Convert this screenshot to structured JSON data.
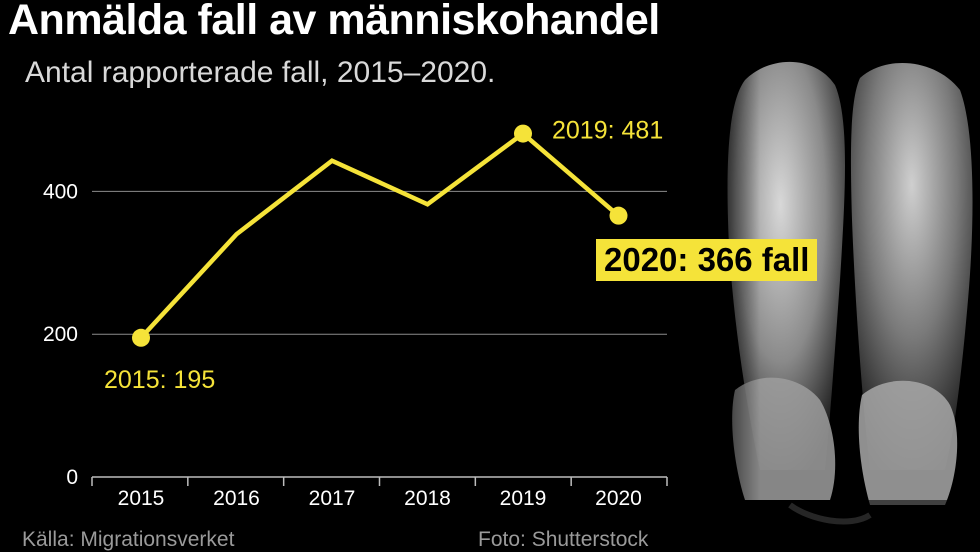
{
  "header": {
    "title": "Anmälda fall av människohandel",
    "subtitle": "Antal rapporterade fall, 2015–2020."
  },
  "chart_data": {
    "type": "line",
    "x": [
      "2015",
      "2016",
      "2017",
      "2018",
      "2019",
      "2020"
    ],
    "values": [
      195,
      340,
      443,
      382,
      481,
      366
    ],
    "ylim": [
      0,
      500
    ],
    "yticks": [
      0,
      200,
      400
    ],
    "grid": true,
    "line_color": "#f5e339",
    "annotations": [
      {
        "label": "2015: 195",
        "index": 0
      },
      {
        "label": "2019: 481",
        "index": 4
      }
    ],
    "callout": {
      "label": "2020: 366 fall",
      "index": 5
    }
  },
  "footer": {
    "source": "Källa: Migrationsverket",
    "credit": "Foto: Shutterstock"
  },
  "image": {
    "subject": "black-and-white photo of a person's knees and hands"
  }
}
